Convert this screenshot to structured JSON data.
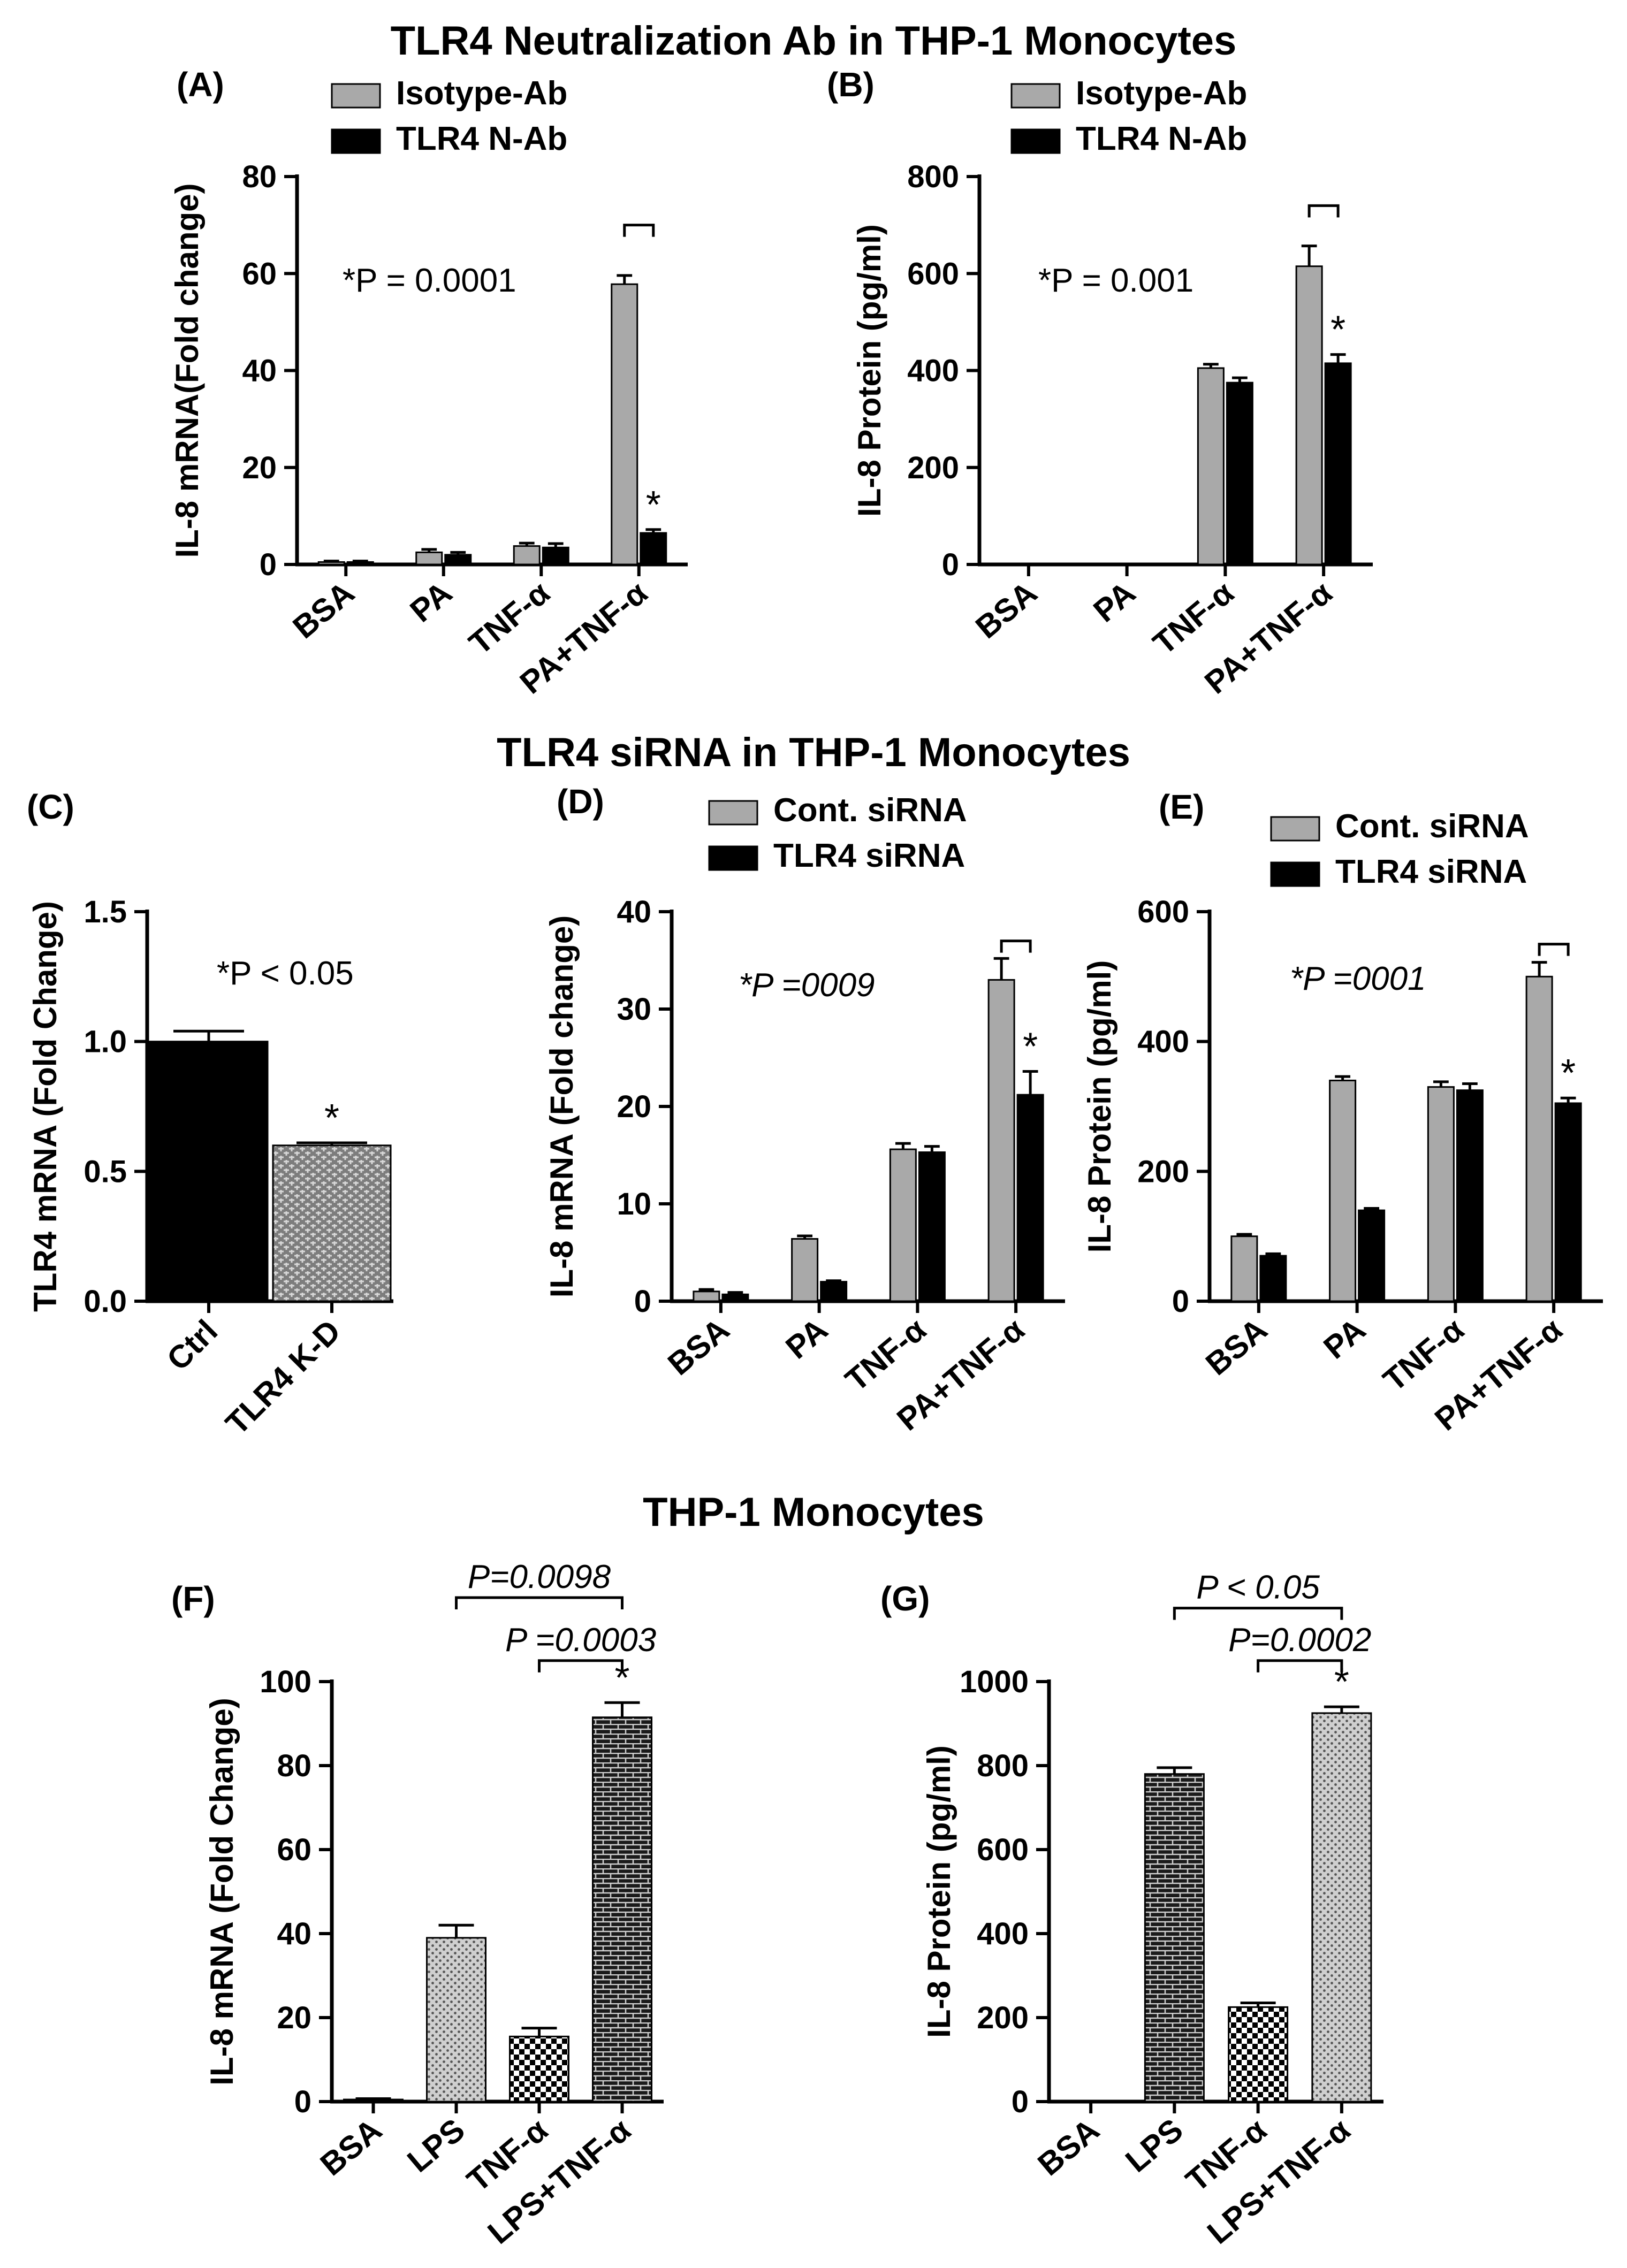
{
  "sections": {
    "top": "TLR4 Neutralization Ab in THP-1 Monocytes",
    "middle": "TLR4 siRNA in THP-1 Monocytes",
    "bottom": "THP-1 Monocytes"
  },
  "colors": {
    "gray": "#a9a9a9",
    "black": "#000000"
  },
  "chart_data": [
    {
      "panel": "(A)",
      "type": "bar",
      "ylabel": "IL-8 mRNA(Fold change)",
      "ylim": [
        0,
        80
      ],
      "yticks": [
        0,
        20,
        40,
        60,
        80
      ],
      "categories": [
        "BSA",
        "PA",
        "TNF-α",
        "PA+TNF-α"
      ],
      "series": [
        {
          "name": "Isotype-Ab",
          "color": "gray",
          "values": [
            0.5,
            2.5,
            3.8,
            57.8
          ],
          "errors": [
            0.2,
            0.6,
            0.6,
            1.8
          ]
        },
        {
          "name": "TLR4 N-Ab",
          "color": "black",
          "values": [
            0.5,
            2,
            3.5,
            6.5
          ],
          "errors": [
            0.2,
            0.5,
            0.8,
            0.7
          ]
        }
      ],
      "pvalue": "*P = 0.0001",
      "stars": [
        {
          "label": "*",
          "category": 3,
          "series": 1
        }
      ],
      "brackets": [
        {
          "from": 3,
          "to": 3,
          "level": 70
        }
      ]
    },
    {
      "panel": "(B)",
      "type": "bar",
      "ylabel": "IL-8 Protein (pg/ml)",
      "ylim": [
        0,
        800
      ],
      "yticks": [
        0,
        200,
        400,
        600,
        800
      ],
      "categories": [
        "BSA",
        "PA",
        "TNF-α",
        "PA+TNF-α"
      ],
      "series": [
        {
          "name": "Isotype-Ab",
          "color": "gray",
          "values": [
            0,
            0,
            405,
            615
          ],
          "errors": [
            0,
            0,
            8,
            42
          ]
        },
        {
          "name": "TLR4 N-Ab",
          "color": "black",
          "values": [
            0,
            0,
            375,
            415
          ],
          "errors": [
            0,
            0,
            10,
            18
          ]
        }
      ],
      "pvalue": "*P = 0.001",
      "stars": [
        {
          "label": "*",
          "category": 3,
          "series": 1
        }
      ],
      "brackets": [
        {
          "from": 3,
          "to": 3,
          "level": 740
        }
      ]
    },
    {
      "panel": "(C)",
      "type": "bar",
      "ylabel": "TLR4 mRNA (Fold Change)",
      "ylim": [
        0,
        1.5
      ],
      "yticks": [
        0.0,
        0.5,
        1.0,
        1.5
      ],
      "categories": [
        "Ctrl",
        "TLR4 K-D"
      ],
      "series": [
        {
          "name": "TLR4 mRNA",
          "values": [
            1.0,
            0.6
          ],
          "errors": [
            0.04,
            0.01
          ],
          "fills": [
            "black",
            "pattern"
          ]
        }
      ],
      "pvalue": "*P < 0.05",
      "stars": [
        {
          "label": "*",
          "category": 1,
          "series": 0
        }
      ]
    },
    {
      "panel": "(D)",
      "type": "bar",
      "ylabel": "IL-8 mRNA (Fold change)",
      "ylim": [
        0,
        40
      ],
      "yticks": [
        0,
        10,
        20,
        30,
        40
      ],
      "categories": [
        "BSA",
        "PA",
        "TNF-α",
        "PA+TNF-α"
      ],
      "series": [
        {
          "name": "Cont. siRNA",
          "color": "gray",
          "values": [
            1,
            6.4,
            15.6,
            33
          ],
          "errors": [
            0.2,
            0.3,
            0.6,
            2.2
          ]
        },
        {
          "name": "TLR4 siRNA",
          "color": "black",
          "values": [
            0.7,
            2,
            15.3,
            21.2
          ],
          "errors": [
            0.2,
            0.1,
            0.6,
            2.4
          ]
        }
      ],
      "pvalue": "*P =0009",
      "stars": [
        {
          "label": "*",
          "category": 3,
          "series": 1
        }
      ],
      "brackets": [
        {
          "from": 3,
          "to": 3,
          "level": 37
        }
      ]
    },
    {
      "panel": "(E)",
      "type": "bar",
      "ylabel": "IL-8 Protein (pg/ml)",
      "ylim": [
        0,
        600
      ],
      "yticks": [
        0,
        200,
        400,
        600
      ],
      "categories": [
        "BSA",
        "PA",
        "TNF-α",
        "PA+TNF-α"
      ],
      "series": [
        {
          "name": "Cont. siRNA",
          "color": "gray",
          "values": [
            100,
            340,
            330,
            500
          ],
          "errors": [
            3,
            6,
            8,
            22
          ]
        },
        {
          "name": "TLR4 siRNA",
          "color": "black",
          "values": [
            70,
            140,
            325,
            305
          ],
          "errors": [
            3,
            3,
            10,
            8
          ]
        }
      ],
      "pvalue": "*P =0001",
      "stars": [
        {
          "label": "*",
          "category": 3,
          "series": 1
        }
      ],
      "brackets": [
        {
          "from": 3,
          "to": 3,
          "level": 550
        }
      ]
    },
    {
      "panel": "(F)",
      "type": "bar",
      "ylabel": "IL-8 mRNA (Fold Change)",
      "ylim": [
        0,
        100
      ],
      "yticks": [
        0,
        20,
        40,
        60,
        80,
        100
      ],
      "categories": [
        "BSA",
        "LPS",
        "TNF-α",
        "LPS+TNF-α"
      ],
      "series": [
        {
          "name": "IL-8 mRNA",
          "values": [
            0.5,
            39,
            15.5,
            91.5
          ],
          "errors": [
            0.2,
            3,
            2,
            3.5
          ],
          "fills": [
            "black",
            "dots",
            "checker",
            "brick"
          ]
        }
      ],
      "stars": [
        {
          "label": "*",
          "category": 3,
          "series": 0
        }
      ],
      "brackets": [
        {
          "from": 1,
          "to": 3,
          "level": 120,
          "label": "P=0.0098"
        },
        {
          "from": 2,
          "to": 3,
          "level": 105,
          "label": "P =0.0003"
        }
      ]
    },
    {
      "panel": "(G)",
      "type": "bar",
      "ylabel": "IL-8 Protein (pg/ml)",
      "ylim": [
        0,
        1000
      ],
      "yticks": [
        0,
        200,
        400,
        600,
        800,
        1000
      ],
      "categories": [
        "BSA",
        "LPS",
        "TNF-α",
        "LPS+TNF-α"
      ],
      "series": [
        {
          "name": "IL-8 Protein",
          "values": [
            0,
            780,
            225,
            925
          ],
          "errors": [
            0,
            15,
            10,
            15
          ],
          "fills": [
            "black",
            "brick",
            "checker",
            "dots"
          ]
        }
      ],
      "stars": [
        {
          "label": "*",
          "category": 3,
          "series": 0
        }
      ],
      "brackets": [
        {
          "from": 1,
          "to": 3,
          "level": 1175,
          "label": "P < 0.05"
        },
        {
          "from": 2,
          "to": 3,
          "level": 1050,
          "label": "P=0.0002"
        }
      ]
    }
  ]
}
